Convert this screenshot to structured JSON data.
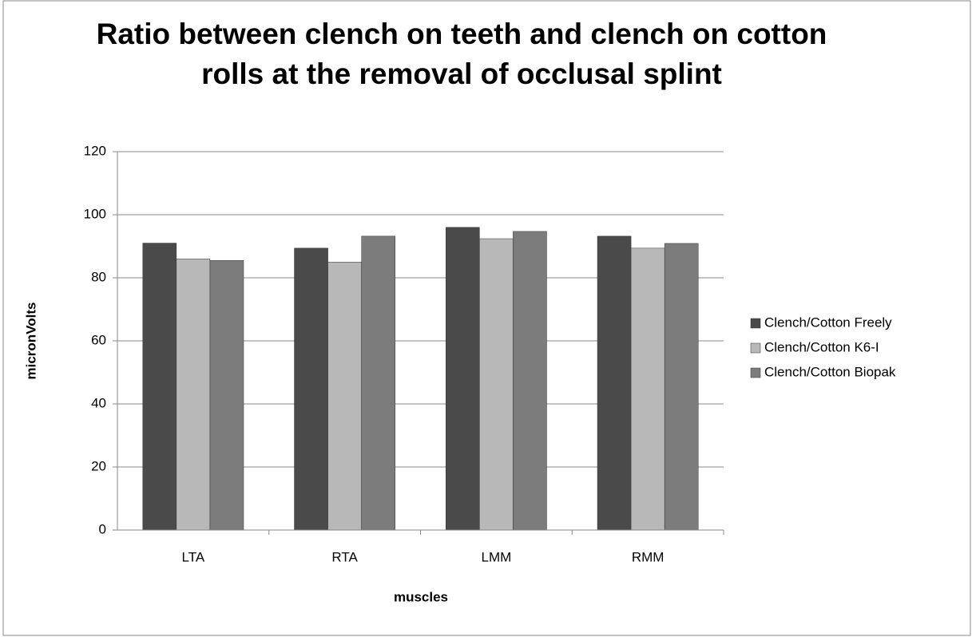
{
  "chart_data": {
    "type": "bar",
    "title": "Ratio between clench on teeth and clench on cotton rolls at the removal of occlusal splint",
    "x_label": "muscles",
    "y_label": "micronVolts",
    "categories": [
      "LTA",
      "RTA",
      "LMM",
      "RMM"
    ],
    "series": [
      {
        "name": "Clench/Cotton Freely",
        "color": "#4a4a4a",
        "values": [
          91,
          89.4,
          96,
          93.2
        ]
      },
      {
        "name": "Clench/Cotton K6-I",
        "color": "#b8b8b8",
        "values": [
          86,
          85,
          92.4,
          89.4
        ]
      },
      {
        "name": "Clench/Cotton Biopak",
        "color": "#7c7c7c",
        "values": [
          85.5,
          93.2,
          94.7,
          90.9
        ]
      }
    ],
    "ylim": [
      0,
      120
    ],
    "yticks": [
      0,
      20,
      40,
      60,
      80,
      100,
      120
    ],
    "grid": true,
    "legend": "right"
  }
}
